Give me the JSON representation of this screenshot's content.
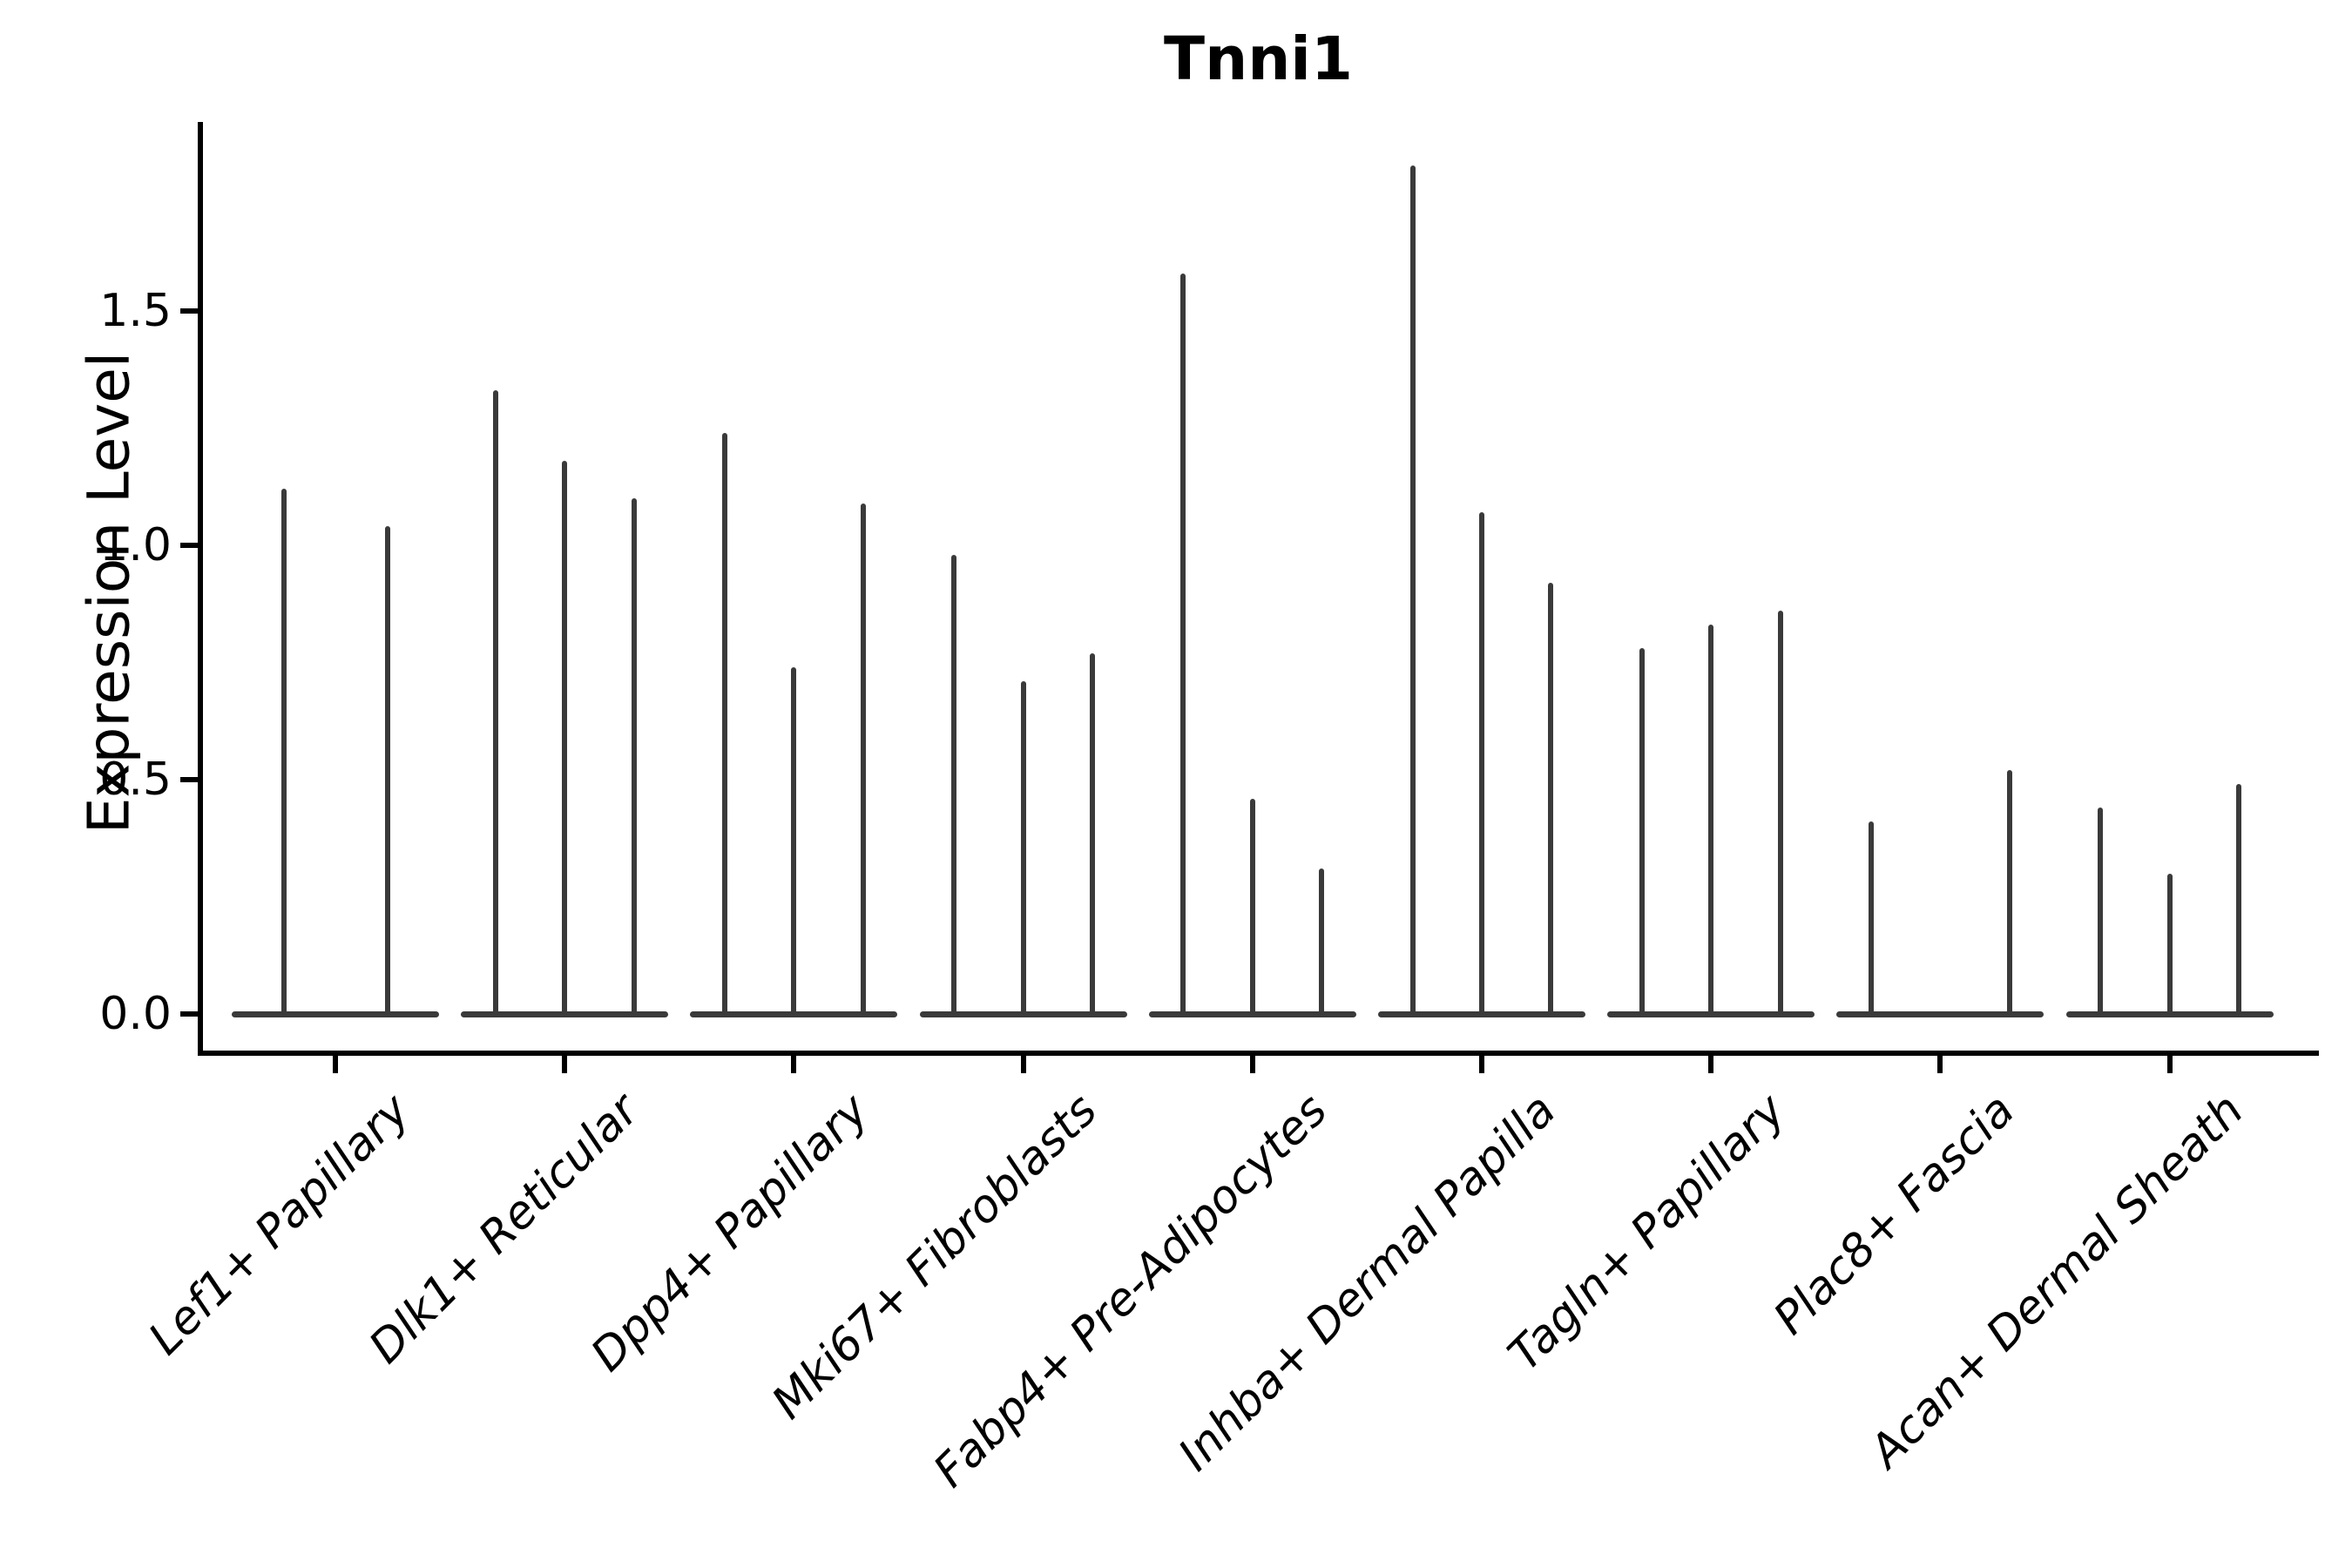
{
  "colors": {
    "background": "#ffffff",
    "axis": "#000000",
    "text": "#000000",
    "violin": "#3a3a3a"
  },
  "chart_data": {
    "type": "violin",
    "title": "Tnni1",
    "xlabel": "",
    "ylabel": "Expression Level",
    "ylim": [
      0,
      1.9
    ],
    "grid": false,
    "legend": "none",
    "ytick_labels": [
      "0.0",
      "0.5",
      "1.0",
      "1.5"
    ],
    "ytick_values": [
      0.0,
      0.5,
      1.0,
      1.5
    ],
    "categories": [
      "Lef1+ Papillary",
      "Dlk1+ Reticular",
      "Dpp4+ Papillary",
      "Mki67+ Fibroblasts",
      "Fabp4+ Pre-Adipocytes",
      "Inhba+ Dermal Papilla",
      "Tagln+ Papillary",
      "Plac8+ Fascia",
      "Acan+ Dermal Sheath"
    ],
    "description": "Each category shows flat violin bodies at expression 0 with thin spikes reaching the maximum expression value of each sub-violin.",
    "groups": [
      {
        "category": "Lef1+ Papillary",
        "violin_max_values": [
          1.12,
          1.04
        ]
      },
      {
        "category": "Dlk1+ Reticular",
        "violin_max_values": [
          1.33,
          1.18,
          1.1
        ]
      },
      {
        "category": "Dpp4+ Papillary",
        "violin_max_values": [
          1.24,
          0.74,
          1.09
        ]
      },
      {
        "category": "Mki67+ Fibroblasts",
        "violin_max_values": [
          0.98,
          0.71,
          0.77
        ]
      },
      {
        "category": "Fabp4+ Pre-Adipocytes",
        "violin_max_values": [
          1.58,
          0.46,
          0.31
        ]
      },
      {
        "category": "Inhba+ Dermal Papilla",
        "violin_max_values": [
          1.81,
          1.07,
          0.92
        ]
      },
      {
        "category": "Tagln+ Papillary",
        "violin_max_values": [
          0.78,
          0.83,
          0.86
        ]
      },
      {
        "category": "Plac8+ Fascia",
        "violin_max_values": [
          0.41,
          0.0,
          0.52
        ]
      },
      {
        "category": "Acan+ Dermal Sheath",
        "violin_max_values": [
          0.44,
          0.3,
          0.49
        ]
      }
    ]
  }
}
